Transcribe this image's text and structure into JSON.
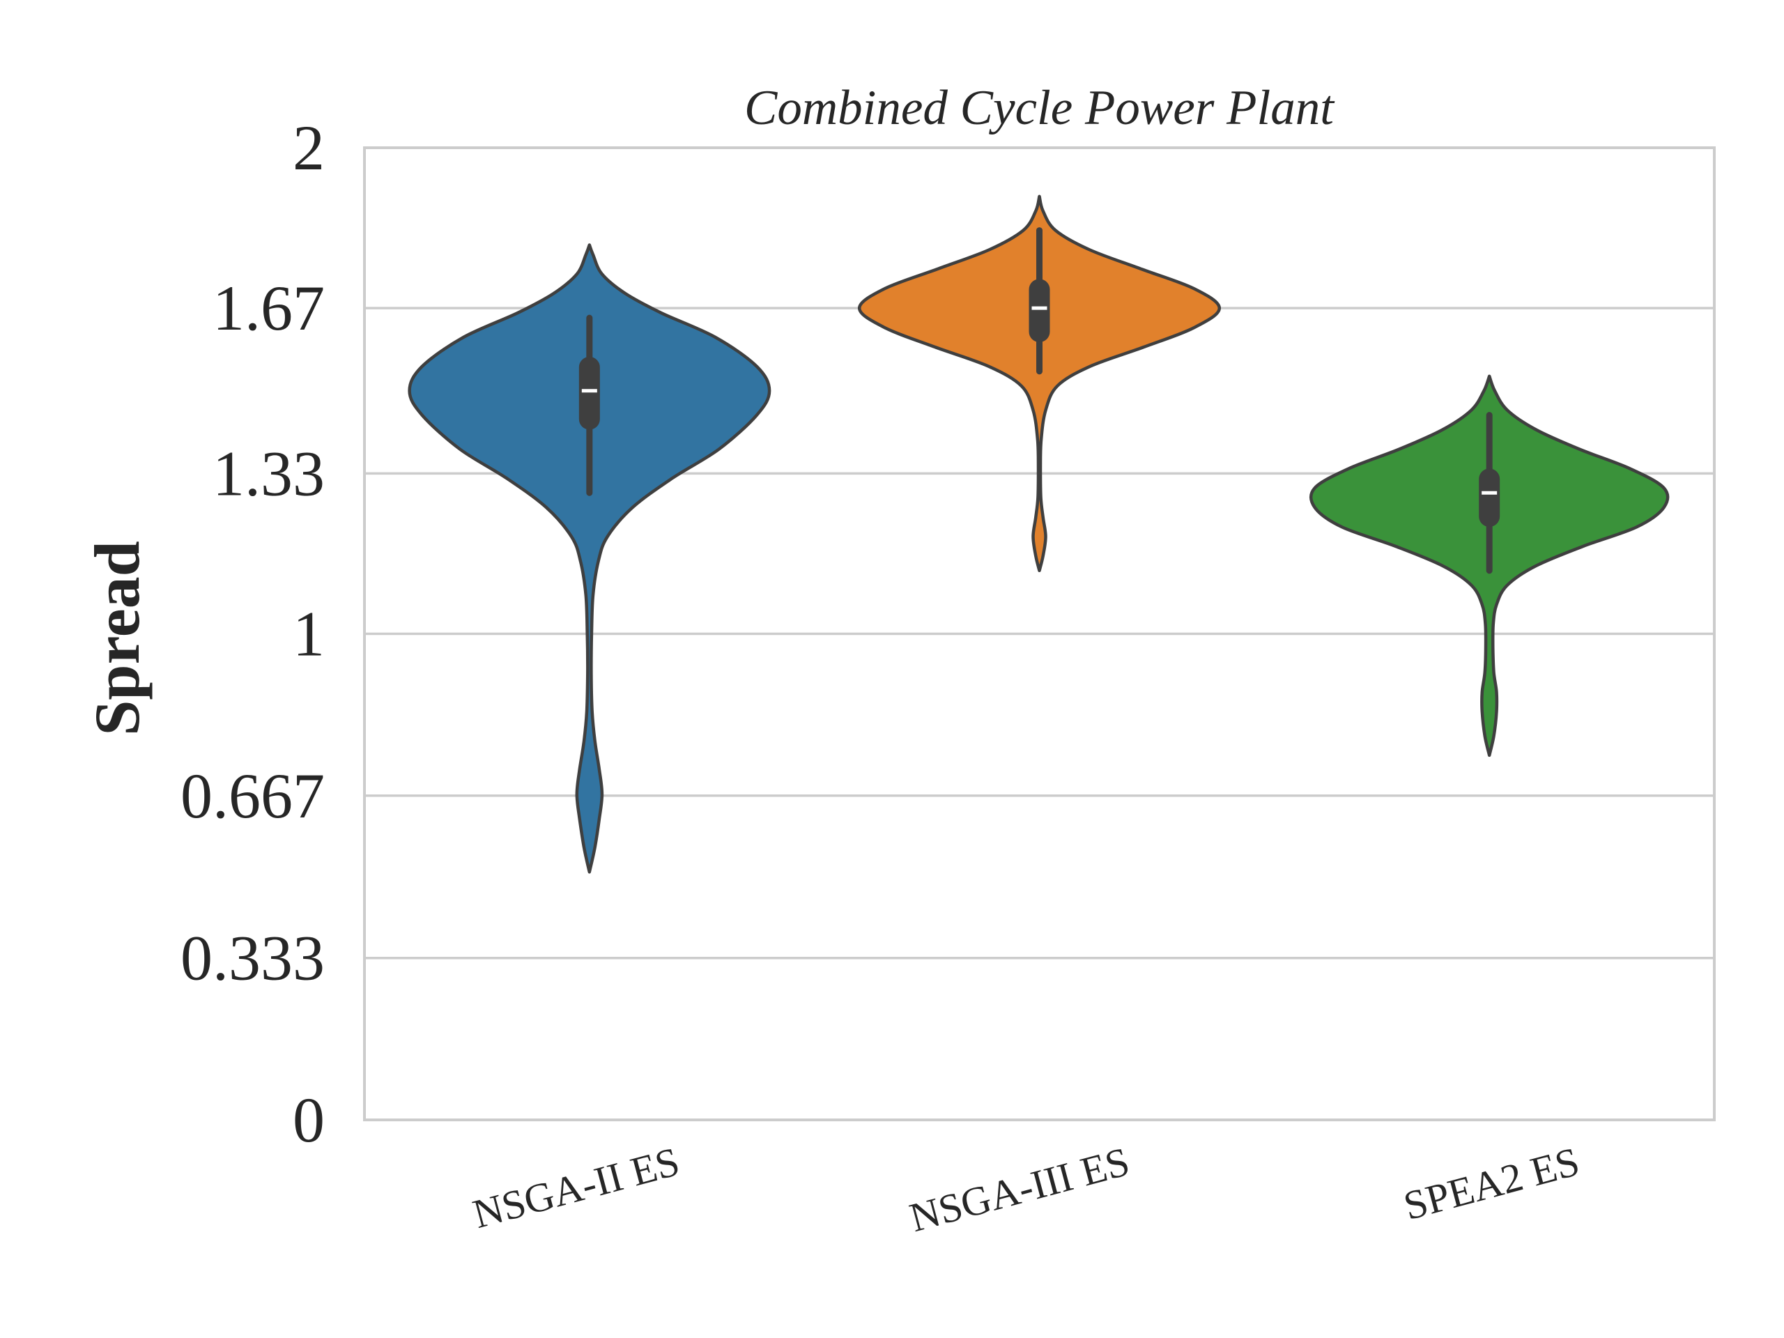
{
  "chart_data": {
    "type": "violin",
    "title": "Combined Cycle Power Plant",
    "xlabel": "",
    "ylabel": "Spread",
    "ylim": [
      0,
      2
    ],
    "yticks": [
      0,
      0.333,
      0.667,
      1,
      1.33,
      1.67,
      2
    ],
    "ytick_labels": [
      "0",
      "0.333",
      "0.667",
      "1",
      "1.33",
      "1.67",
      "2"
    ],
    "grid": "horizontal",
    "categories": [
      "NSGA-II ES",
      "NSGA-III ES",
      "SPEA2 ES"
    ],
    "series": [
      {
        "category": "NSGA-II ES",
        "color": "#3274a1",
        "min": 0.51,
        "max": 1.8,
        "whisker_low": 1.29,
        "whisker_high": 1.65,
        "q1": 1.42,
        "median": 1.5,
        "q3": 1.57,
        "density": [
          [
            0.51,
            0.0
          ],
          [
            0.56,
            0.03
          ],
          [
            0.62,
            0.055
          ],
          [
            0.67,
            0.07
          ],
          [
            0.72,
            0.055
          ],
          [
            0.78,
            0.03
          ],
          [
            0.84,
            0.015
          ],
          [
            0.92,
            0.01
          ],
          [
            1.0,
            0.012
          ],
          [
            1.08,
            0.02
          ],
          [
            1.15,
            0.05
          ],
          [
            1.2,
            0.1
          ],
          [
            1.26,
            0.24
          ],
          [
            1.32,
            0.46
          ],
          [
            1.38,
            0.72
          ],
          [
            1.45,
            0.93
          ],
          [
            1.5,
            1.0
          ],
          [
            1.55,
            0.93
          ],
          [
            1.61,
            0.7
          ],
          [
            1.66,
            0.4
          ],
          [
            1.7,
            0.2
          ],
          [
            1.74,
            0.07
          ],
          [
            1.78,
            0.02
          ],
          [
            1.8,
            0.0
          ]
        ]
      },
      {
        "category": "NSGA-III ES",
        "color": "#e1812c",
        "min": 1.13,
        "max": 1.9,
        "whisker_low": 1.54,
        "whisker_high": 1.83,
        "q1": 1.6,
        "median": 1.67,
        "q3": 1.73,
        "density": [
          [
            1.13,
            0.0
          ],
          [
            1.16,
            0.02
          ],
          [
            1.2,
            0.035
          ],
          [
            1.24,
            0.02
          ],
          [
            1.28,
            0.008
          ],
          [
            1.34,
            0.006
          ],
          [
            1.4,
            0.01
          ],
          [
            1.46,
            0.035
          ],
          [
            1.51,
            0.1
          ],
          [
            1.55,
            0.28
          ],
          [
            1.59,
            0.58
          ],
          [
            1.63,
            0.86
          ],
          [
            1.67,
            1.0
          ],
          [
            1.71,
            0.86
          ],
          [
            1.75,
            0.57
          ],
          [
            1.79,
            0.28
          ],
          [
            1.83,
            0.09
          ],
          [
            1.87,
            0.02
          ],
          [
            1.9,
            0.0
          ]
        ]
      },
      {
        "category": "SPEA2 ES",
        "color": "#3a923a",
        "min": 0.75,
        "max": 1.53,
        "whisker_low": 1.13,
        "whisker_high": 1.45,
        "q1": 1.22,
        "median": 1.29,
        "q3": 1.34,
        "density": [
          [
            0.75,
            0.0
          ],
          [
            0.79,
            0.025
          ],
          [
            0.84,
            0.04
          ],
          [
            0.88,
            0.04
          ],
          [
            0.92,
            0.025
          ],
          [
            0.97,
            0.02
          ],
          [
            1.02,
            0.022
          ],
          [
            1.06,
            0.04
          ],
          [
            1.1,
            0.1
          ],
          [
            1.14,
            0.26
          ],
          [
            1.18,
            0.52
          ],
          [
            1.22,
            0.82
          ],
          [
            1.26,
            0.97
          ],
          [
            1.3,
            0.97
          ],
          [
            1.34,
            0.78
          ],
          [
            1.38,
            0.5
          ],
          [
            1.42,
            0.26
          ],
          [
            1.46,
            0.1
          ],
          [
            1.5,
            0.03
          ],
          [
            1.53,
            0.0
          ]
        ]
      }
    ]
  }
}
